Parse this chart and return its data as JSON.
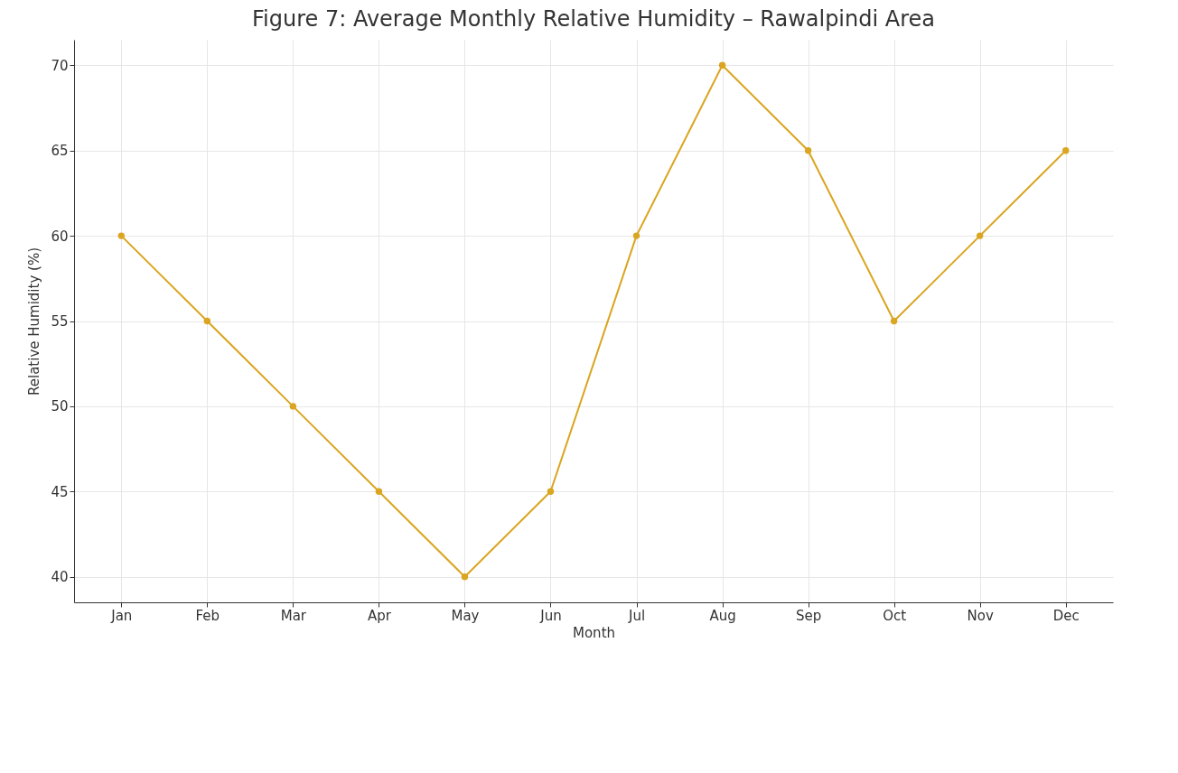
{
  "chart_data": {
    "type": "line",
    "title": "Figure 7: Average Monthly Relative Humidity – Rawalpindi Area",
    "xlabel": "Month",
    "ylabel": "Relative Humidity (%)",
    "categories": [
      "Jan",
      "Feb",
      "Mar",
      "Apr",
      "May",
      "Jun",
      "Jul",
      "Aug",
      "Sep",
      "Oct",
      "Nov",
      "Dec"
    ],
    "series": [
      {
        "color": "#daa520",
        "values": [
          60,
          55,
          50,
          45,
          40,
          45,
          60,
          70,
          65,
          55,
          60,
          65
        ]
      }
    ],
    "ylim": [
      38.5,
      71.5
    ],
    "yticks": [
      40,
      45,
      50,
      55,
      60,
      65,
      70
    ],
    "grid": true,
    "marker": "circle",
    "line_style": "solid"
  }
}
